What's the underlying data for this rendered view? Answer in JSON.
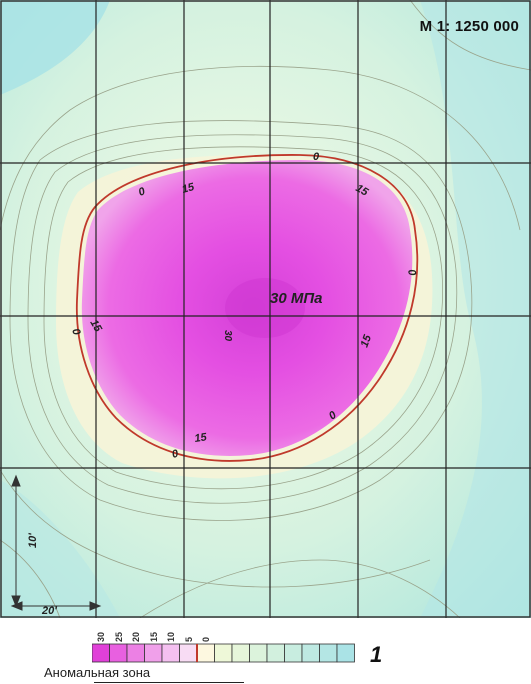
{
  "map": {
    "scale_label": "M 1: 1250 000",
    "center_label": "30 МПа",
    "center_value_label": "30",
    "contour_labels": [
      "0",
      "15",
      "15",
      "0",
      "15",
      "0",
      "15",
      "0",
      "0",
      "15",
      "0"
    ],
    "scalebar": {
      "vertical_label": "10'",
      "horizontal_label": "20'"
    },
    "colors": {
      "background": "#a9e6d8",
      "anomaly_boundary": "#c0392b",
      "core": "#e85ce0",
      "gridlines": "#222222"
    }
  },
  "legend": {
    "ticks": [
      "30",
      "25",
      "20",
      "15",
      "10",
      "5",
      "0"
    ],
    "caption": "Аномальная зона",
    "item_number": "1",
    "swatch_colors": [
      "#e040d8",
      "#e860e0",
      "#ec80e4",
      "#f0a0ea",
      "#f4c0f0",
      "#f8dcf4",
      "#fdf8e0",
      "#eef8d8",
      "#e6f6da",
      "#dcf3dc",
      "#d2f0de",
      "#c8ede0",
      "#bee9e2",
      "#b4e6e4",
      "#aae3e6"
    ]
  }
}
